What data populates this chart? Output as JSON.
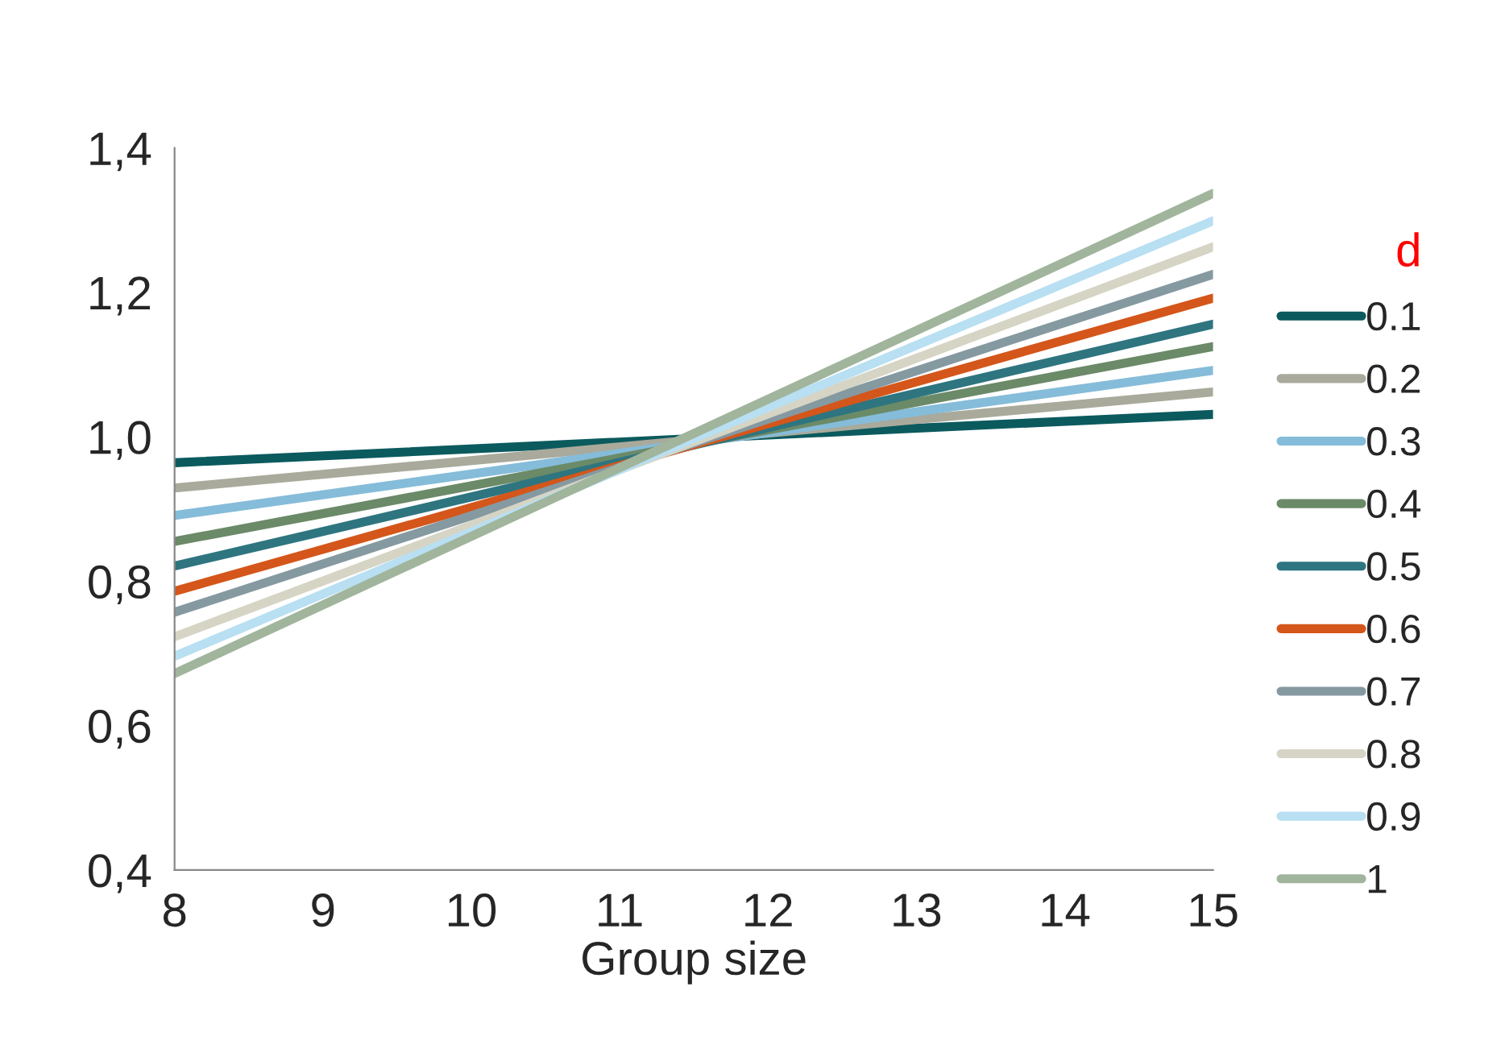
{
  "chart_data": {
    "type": "line",
    "xlabel": "Group size",
    "legend_title": "d",
    "legend": "right",
    "grid": false,
    "marker": "none",
    "line_style": "solid",
    "xlim": [
      8,
      15
    ],
    "xticks": [
      8,
      9,
      10,
      11,
      12,
      13,
      14,
      15
    ],
    "ylim": [
      0.4,
      1.4
    ],
    "yticks": [
      {
        "value": 0.4,
        "label": "0,4"
      },
      {
        "value": 0.6,
        "label": "0,6"
      },
      {
        "value": 0.8,
        "label": "0,8"
      },
      {
        "value": 1.0,
        "label": "1,0"
      },
      {
        "value": 1.2,
        "label": "1,2"
      },
      {
        "value": 1.4,
        "label": "1,4"
      }
    ],
    "x": [
      8,
      15
    ],
    "series": [
      {
        "name": "0.1",
        "color": "#0b5a5e",
        "values": [
          0.964,
          1.031
        ]
      },
      {
        "name": "0.2",
        "color": "#a9aa9b",
        "values": [
          0.929,
          1.062
        ]
      },
      {
        "name": "0.3",
        "color": "#85bcd9",
        "values": [
          0.891,
          1.092
        ]
      },
      {
        "name": "0.4",
        "color": "#6b8a68",
        "values": [
          0.855,
          1.125
        ]
      },
      {
        "name": "0.5",
        "color": "#2e7580",
        "values": [
          0.821,
          1.156
        ]
      },
      {
        "name": "0.6",
        "color": "#d4561a",
        "values": [
          0.786,
          1.192
        ]
      },
      {
        "name": "0.7",
        "color": "#8599a1",
        "values": [
          0.757,
          1.225
        ]
      },
      {
        "name": "0.8",
        "color": "#d6d4c4",
        "values": [
          0.723,
          1.263
        ]
      },
      {
        "name": "0.9",
        "color": "#b8dff2",
        "values": [
          0.696,
          1.299
        ]
      },
      {
        "name": "1",
        "color": "#a0b59c",
        "values": [
          0.672,
          1.337
        ]
      }
    ]
  }
}
